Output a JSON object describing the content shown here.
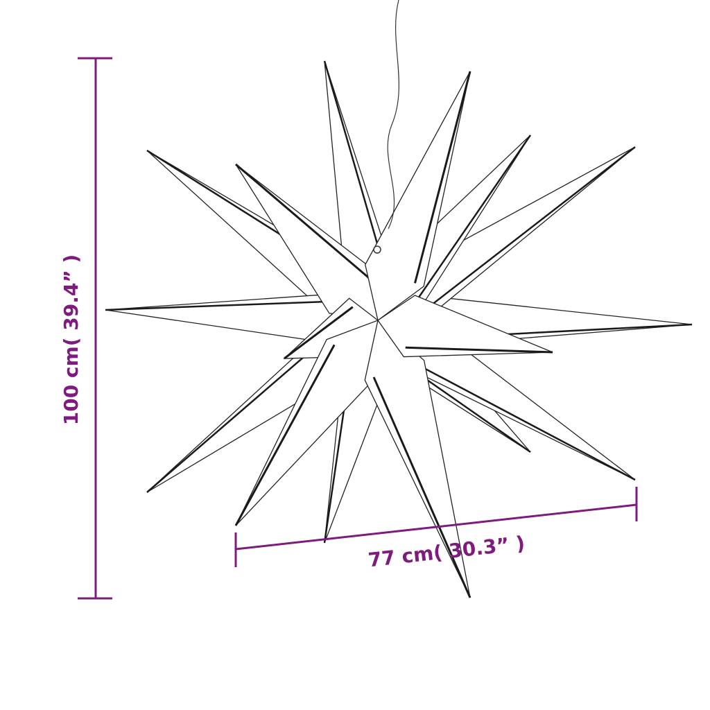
{
  "dimensions": {
    "height_label": "100 cm( 39.4” )",
    "width_label": "77 cm( 30.3” )"
  },
  "colors": {
    "dimension": "#7f1a7f",
    "outline": "#222222",
    "led_strip": "#1a1a1a"
  },
  "product_icon": "3d-moravian-star-light"
}
